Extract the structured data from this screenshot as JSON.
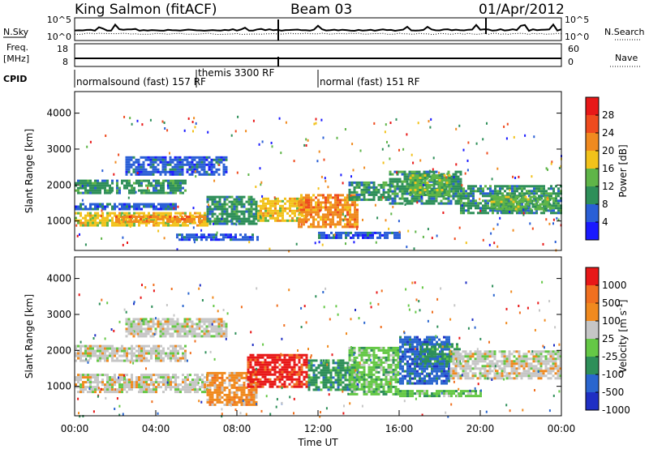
{
  "header": {
    "station": "King Salmon (fitACF)",
    "beam": "Beam 03",
    "date": "01/Apr/2012"
  },
  "noise_panel": {
    "left_label": "N.Sky",
    "left_ticks": [
      "10^5",
      "10^0"
    ],
    "right_ticks": [
      "10^5",
      "10^0"
    ],
    "right_label": "N.Search",
    "right_label_style": "dotted"
  },
  "freq_panel": {
    "left_label_1": "Freq.",
    "left_label_2": "[MHz]",
    "left_ticks": [
      "18",
      "8"
    ],
    "right_ticks": [
      "60",
      "0"
    ],
    "right_label": "Nave",
    "right_label_style": "dotted"
  },
  "cpid": {
    "label": "CPID",
    "segments": [
      {
        "name": "normalsound (fast) 157 RF",
        "start_hour": 0
      },
      {
        "name": "themis 3300 RF",
        "start_hour": 6
      },
      {
        "name": "normal (fast) 151 RF",
        "start_hour": 12
      }
    ]
  },
  "power_colorbar": {
    "label": "Power [dB]",
    "ticks": [
      "28",
      "24",
      "20",
      "16",
      "12",
      "8",
      "4"
    ],
    "colors": [
      "#1a1aff",
      "#2a5fd6",
      "#2e8f59",
      "#5fb548",
      "#f2c21b",
      "#f08a1f",
      "#ef4b1e",
      "#e81818"
    ]
  },
  "velocity_colorbar": {
    "label": "Velocity [m s",
    "label_sup": "-1",
    "label_end": "]",
    "ticks": [
      "1000",
      "500",
      "100",
      "25",
      "-25",
      "-100",
      "-500",
      "-1000"
    ],
    "colors": [
      "#1f2fc4",
      "#2a66cf",
      "#2e8f59",
      "#65c846",
      "#c6c6c6",
      "#f08a1f",
      "#f07020",
      "#e81818"
    ]
  },
  "x_axis": {
    "label": "Time UT",
    "ticks": [
      "00:00",
      "04:00",
      "08:00",
      "12:00",
      "16:00",
      "20:00",
      "00:00"
    ]
  },
  "chart_data": [
    {
      "type": "heatmap",
      "title": "",
      "xlabel": "",
      "ylabel": "Slant Range [km]",
      "x_unit": "hour UT",
      "xlim": [
        0,
        24
      ],
      "ylim": [
        180,
        4600
      ],
      "yticks": [
        "1000",
        "2000",
        "3000",
        "4000"
      ],
      "colorbar": "power",
      "regions": [
        {
          "t0": 0.0,
          "t1": 6.5,
          "r0": 900,
          "r1": 1250,
          "level": 4
        },
        {
          "t0": 2.0,
          "t1": 6.5,
          "r0": 950,
          "r1": 1150,
          "level": 5
        },
        {
          "t0": 0.0,
          "t1": 5.5,
          "r0": 1750,
          "r1": 2150,
          "level": 2
        },
        {
          "t0": 0.0,
          "t1": 5.0,
          "r0": 1350,
          "r1": 1500,
          "level": 1
        },
        {
          "t0": 2.5,
          "t1": 7.5,
          "r0": 2300,
          "r1": 2800,
          "level": 1
        },
        {
          "t0": 6.5,
          "t1": 9.0,
          "r0": 900,
          "r1": 1700,
          "level": 2
        },
        {
          "t0": 9.0,
          "t1": 11.5,
          "r0": 1000,
          "r1": 1650,
          "level": 4
        },
        {
          "t0": 11.0,
          "t1": 14.0,
          "r0": 850,
          "r1": 1750,
          "level": 5
        },
        {
          "t0": 13.5,
          "t1": 15.5,
          "r0": 1600,
          "r1": 2100,
          "level": 2
        },
        {
          "t0": 15.5,
          "t1": 19.0,
          "r0": 1500,
          "r1": 2400,
          "level": 2
        },
        {
          "t0": 16.5,
          "t1": 18.5,
          "r0": 1700,
          "r1": 2300,
          "level": 3
        },
        {
          "t0": 19.0,
          "t1": 24.0,
          "r0": 1200,
          "r1": 2000,
          "level": 2
        },
        {
          "t0": 20.5,
          "t1": 23.5,
          "r0": 1300,
          "r1": 1700,
          "level": 3
        },
        {
          "t0": 5.0,
          "t1": 9.0,
          "r0": 450,
          "r1": 650,
          "level": 1
        },
        {
          "t0": 12.0,
          "t1": 16.0,
          "r0": 500,
          "r1": 700,
          "level": 1
        }
      ]
    },
    {
      "type": "heatmap",
      "title": "",
      "xlabel": "Time UT",
      "ylabel": "Slant Range [km]",
      "x_unit": "hour UT",
      "xlim": [
        0,
        24
      ],
      "ylim": [
        180,
        4600
      ],
      "yticks": [
        "1000",
        "2000",
        "3000",
        "4000"
      ],
      "colorbar": "velocity",
      "regions": [
        {
          "t0": 0.0,
          "t1": 6.5,
          "r0": 850,
          "r1": 1350,
          "level": 4
        },
        {
          "t0": 0.0,
          "t1": 5.5,
          "r0": 1700,
          "r1": 2150,
          "level": 4
        },
        {
          "t0": 2.5,
          "t1": 7.5,
          "r0": 2400,
          "r1": 2900,
          "level": 4
        },
        {
          "t0": 6.5,
          "t1": 9.0,
          "r0": 500,
          "r1": 1400,
          "level": 5
        },
        {
          "t0": 8.5,
          "t1": 11.5,
          "r0": 1000,
          "r1": 1900,
          "level": 7
        },
        {
          "t0": 11.5,
          "t1": 14.0,
          "r0": 900,
          "r1": 1750,
          "level": 2
        },
        {
          "t0": 13.5,
          "t1": 16.0,
          "r0": 800,
          "r1": 2100,
          "level": 3
        },
        {
          "t0": 16.0,
          "t1": 18.5,
          "r0": 1100,
          "r1": 2400,
          "level": 1
        },
        {
          "t0": 17.0,
          "t1": 19.0,
          "r0": 1600,
          "r1": 2200,
          "level": 2
        },
        {
          "t0": 18.5,
          "t1": 24.0,
          "r0": 1200,
          "r1": 2000,
          "level": 4
        },
        {
          "t0": 16.0,
          "t1": 20.0,
          "r0": 700,
          "r1": 900,
          "level": 3
        }
      ]
    }
  ]
}
